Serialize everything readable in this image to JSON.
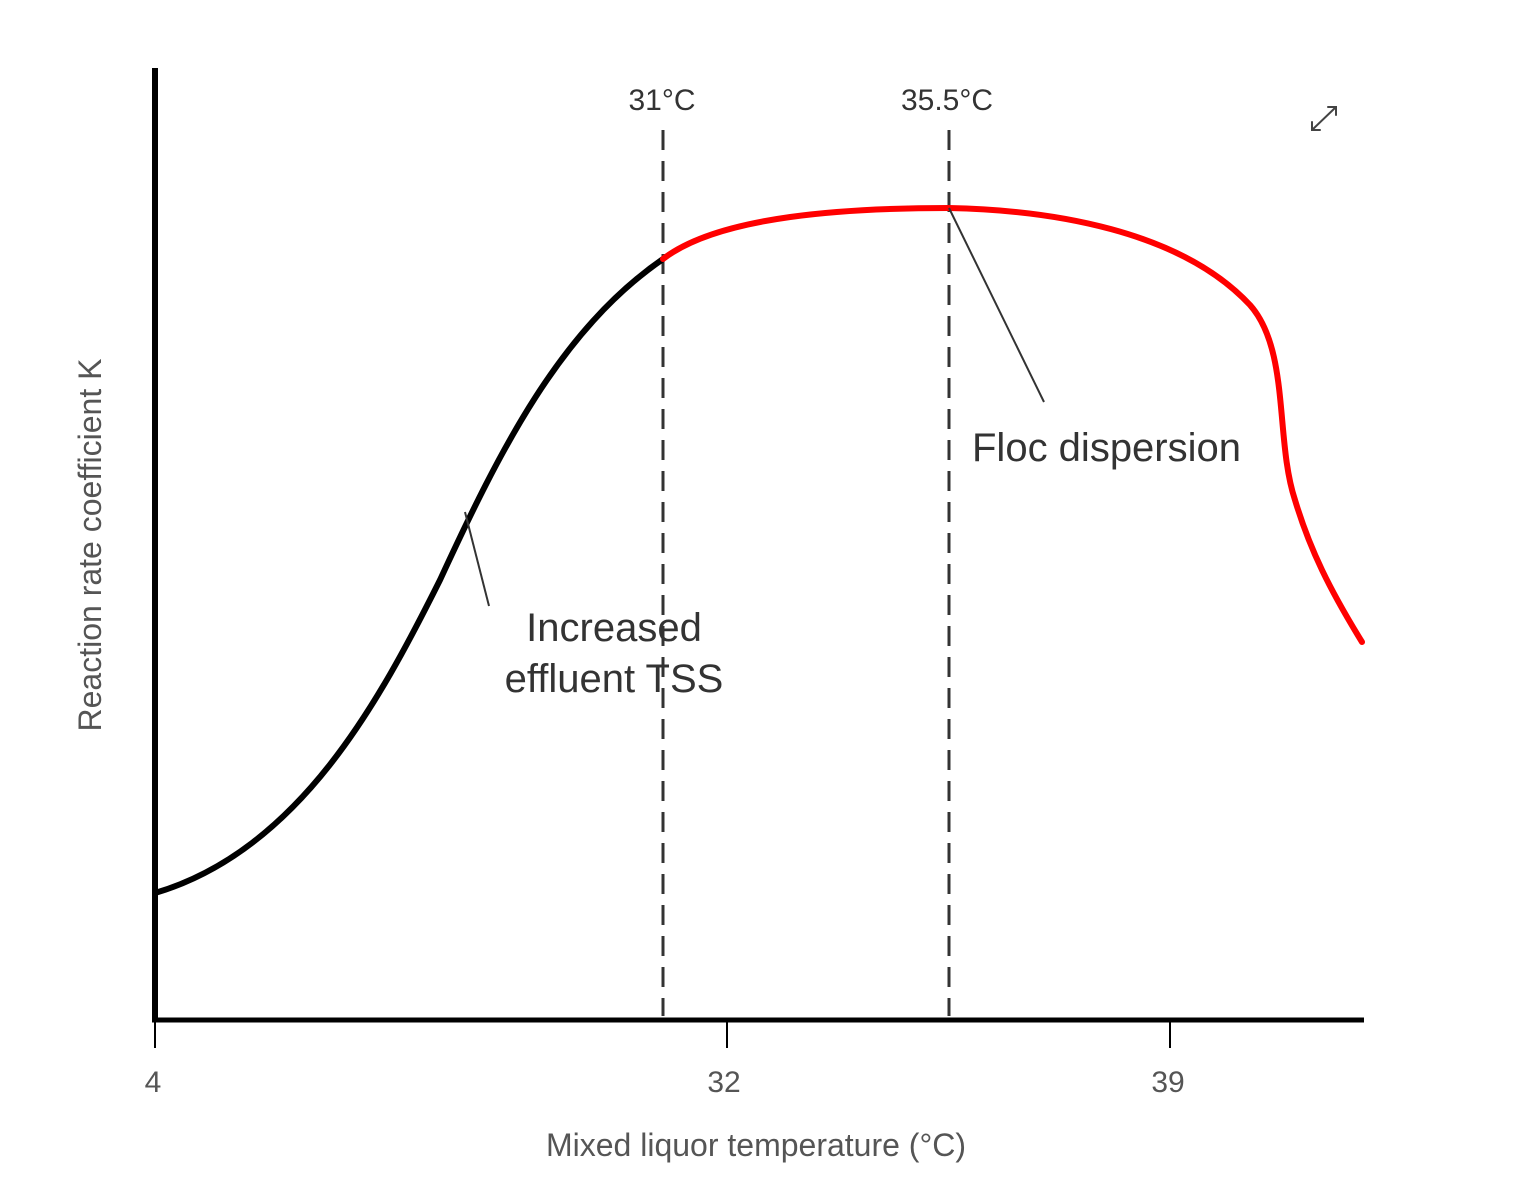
{
  "chart_data": {
    "type": "line",
    "title": "",
    "xlabel": "Mixed liquor temperature (°C)",
    "ylabel": "Reaction rate coefficient K",
    "x_ticks": [
      "4",
      "32",
      "39"
    ],
    "reference_lines": [
      {
        "label": "31°C",
        "style": "dashed"
      },
      {
        "label": "35.5°C",
        "style": "dashed"
      }
    ],
    "series": [
      {
        "color": "#000000",
        "points": [
          [
            4,
            0.13
          ],
          [
            8,
            0.25
          ],
          [
            16,
            0.55
          ],
          [
            22,
            0.75
          ],
          [
            28,
            0.85
          ]
        ]
      },
      {
        "color": "#ff0000",
        "points": [
          [
            28,
            0.85
          ],
          [
            32,
            0.89
          ],
          [
            35.5,
            0.9
          ],
          [
            38,
            0.86
          ],
          [
            39.5,
            0.72
          ],
          [
            41.5,
            0.4
          ]
        ]
      }
    ],
    "annotations": [
      {
        "text_lines": [
          "Increased",
          "effluent TSS"
        ]
      },
      {
        "text_lines": [
          "Floc dispersion"
        ]
      }
    ],
    "grid": false,
    "legend": "none"
  },
  "icons": {
    "expand": "expand-arrows-icon"
  }
}
